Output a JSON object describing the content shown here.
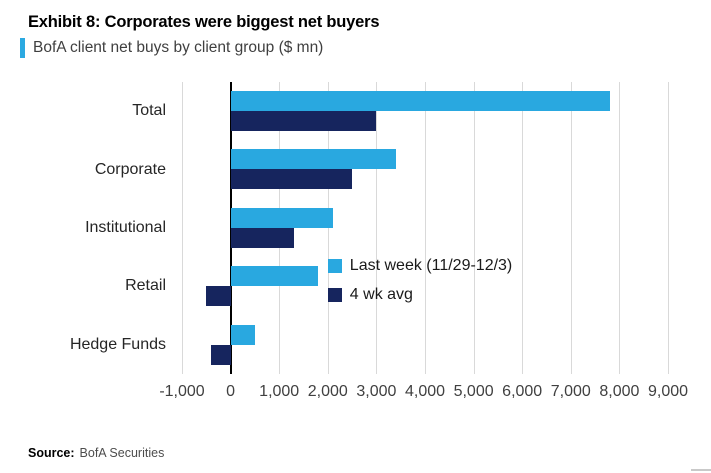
{
  "header": {
    "title": "Exhibit 8: Corporates were biggest net buyers",
    "subtitle": "BofA client net buys by client group ($ mn)",
    "accent_color": "#2BA9E1"
  },
  "chart_data": {
    "type": "bar",
    "orientation": "horizontal",
    "title": "BofA client net buys by client group ($ mn)",
    "categories": [
      "Total",
      "Corporate",
      "Institutional",
      "Retail",
      "Hedge Funds"
    ],
    "series": [
      {
        "name": "Last week (11/29-12/3)",
        "color": "#29A8E0",
        "values": [
          7800,
          3400,
          2100,
          1800,
          500
        ]
      },
      {
        "name": "4 wk avg",
        "color": "#16255E",
        "values": [
          3000,
          2500,
          1300,
          -500,
          -400
        ]
      }
    ],
    "xlim": [
      -1000,
      9000
    ],
    "xticks": [
      -1000,
      0,
      1000,
      2000,
      3000,
      4000,
      5000,
      6000,
      7000,
      8000,
      9000
    ],
    "xtick_labels": [
      "-1,000",
      "0",
      "1,000",
      "2,000",
      "3,000",
      "4,000",
      "5,000",
      "6,000",
      "7,000",
      "8,000",
      "9,000"
    ],
    "grid": "vertical",
    "legend_position": "inside-right"
  },
  "footer": {
    "source_label": "Source:",
    "source_value": "BofA Securities"
  }
}
